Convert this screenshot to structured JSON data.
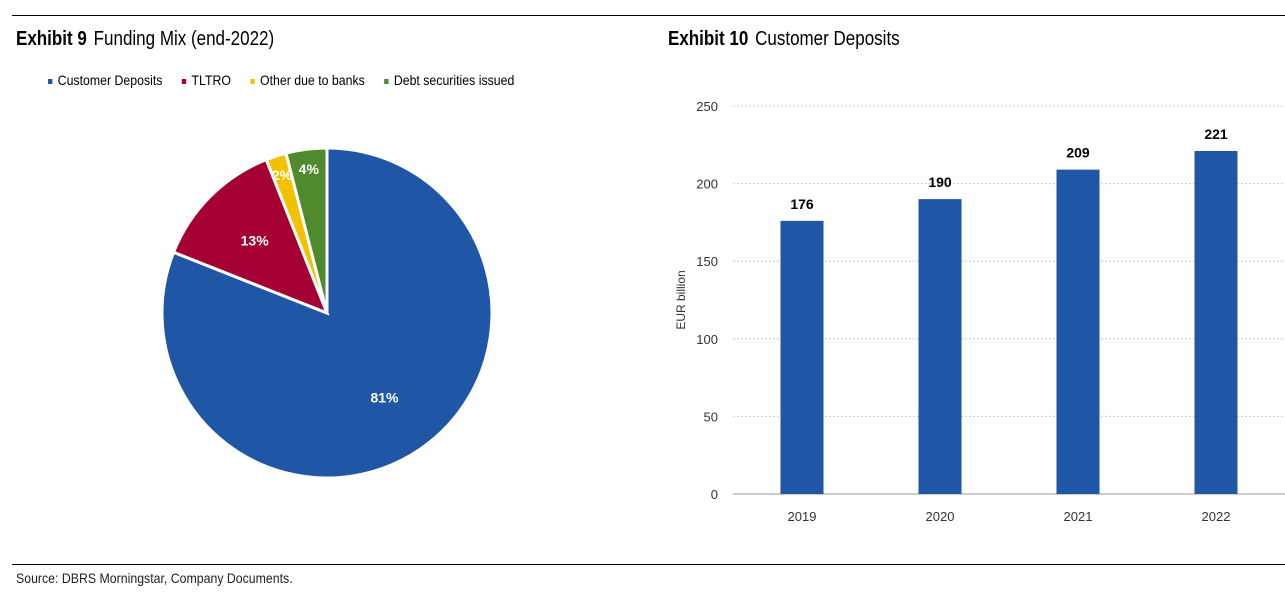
{
  "left": {
    "exhibit": "Exhibit 9",
    "title": "Funding Mix (end-2022)"
  },
  "right": {
    "exhibit": "Exhibit 10",
    "title": "Customer Deposits"
  },
  "source": "Source: DBRS Morningstar, Company Documents.",
  "chart_data": [
    {
      "type": "pie",
      "title": "Funding Mix (end-2022)",
      "legend_position": "top",
      "categories": [
        "Customer Deposits",
        "TLTRO",
        "Other due to banks",
        "Debt securities issued"
      ],
      "values": [
        81,
        13,
        2,
        4
      ],
      "labels": [
        "81%",
        "13%",
        "2%",
        "4%"
      ],
      "colors": [
        "#1f56a5",
        "#a50034",
        "#f2c200",
        "#4f8a2c"
      ]
    },
    {
      "type": "bar",
      "title": "Customer Deposits",
      "categories": [
        "2019",
        "2020",
        "2021",
        "2022"
      ],
      "values": [
        176,
        190,
        209,
        221
      ],
      "ylabel": "EUR billion",
      "ylim": [
        0,
        250
      ],
      "yticks": [
        0,
        50,
        100,
        150,
        200,
        250
      ],
      "grid": true,
      "color": "#1f56a5"
    }
  ]
}
